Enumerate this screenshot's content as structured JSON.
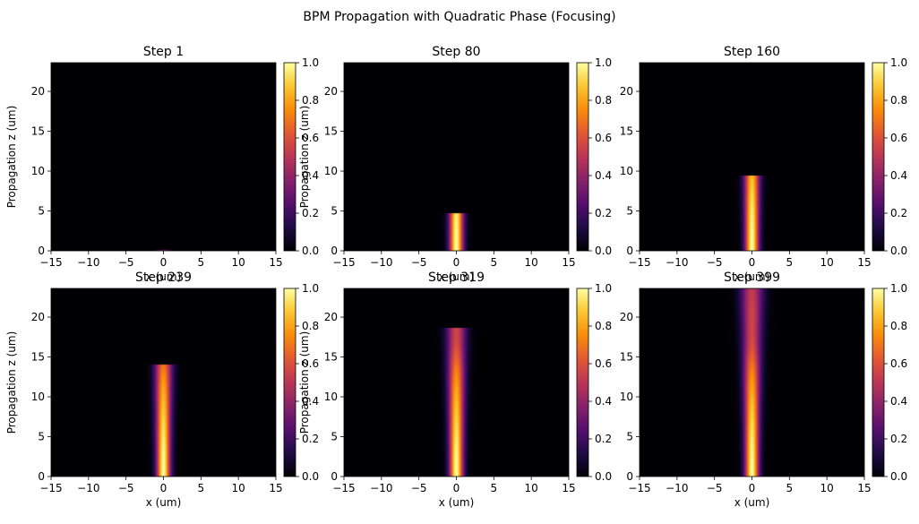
{
  "title": "BPM Propagation with Quadratic Phase (Focusing)",
  "colormap": "inferno",
  "colors": {
    "background": "#ffffff",
    "axis": "#000000",
    "plot_bg": "#000004"
  },
  "chart_data": [
    {
      "type": "heatmap",
      "title": "Step 1",
      "xlabel": "x (um)",
      "ylabel": "Propagation z (um)",
      "xlim": [
        -15,
        15
      ],
      "ylim": [
        0,
        23.6
      ],
      "xticks": [
        "−15",
        "−10",
        "−5",
        "0",
        "5",
        "10",
        "15"
      ],
      "yticks": [
        "0",
        "5",
        "10",
        "15",
        "20"
      ],
      "front_z": 0.06,
      "w0": 1.0,
      "z0": 18.5,
      "zf": 11,
      "focus_z": 17,
      "colorbar": {
        "range": [
          0,
          1
        ],
        "ticks": [
          "0.0",
          "0.2",
          "0.4",
          "0.6",
          "0.8",
          "1.0"
        ]
      }
    },
    {
      "type": "heatmap",
      "title": "Step 80",
      "xlabel": "x (um)",
      "ylabel": "Propagation z (um)",
      "xlim": [
        -15,
        15
      ],
      "ylim": [
        0,
        23.6
      ],
      "xticks": [
        "−15",
        "−10",
        "−5",
        "0",
        "5",
        "10",
        "15"
      ],
      "yticks": [
        "0",
        "5",
        "10",
        "15",
        "20"
      ],
      "front_z": 4.7,
      "w0": 1.0,
      "z0": 18.5,
      "zf": 11,
      "focus_z": 17,
      "colorbar": {
        "range": [
          0,
          1
        ],
        "ticks": [
          "0.0",
          "0.2",
          "0.4",
          "0.6",
          "0.8",
          "1.0"
        ]
      }
    },
    {
      "type": "heatmap",
      "title": "Step 160",
      "xlabel": "x (um)",
      "ylabel": "",
      "xlim": [
        -15,
        15
      ],
      "ylim": [
        0,
        23.6
      ],
      "xticks": [
        "−15",
        "−10",
        "−5",
        "0",
        "5",
        "10",
        "15"
      ],
      "yticks": [
        "0",
        "5",
        "10",
        "15",
        "20"
      ],
      "front_z": 9.4,
      "w0": 1.0,
      "z0": 18.5,
      "zf": 11,
      "focus_z": 17,
      "colorbar": {
        "range": [
          0,
          1
        ],
        "ticks": [
          "0.0",
          "0.2",
          "0.4",
          "0.6",
          "0.8",
          "1.0"
        ]
      }
    },
    {
      "type": "heatmap",
      "title": "Step 239",
      "xlabel": "x (um)",
      "ylabel": "Propagation z (um)",
      "xlim": [
        -15,
        15
      ],
      "ylim": [
        0,
        23.6
      ],
      "xticks": [
        "−15",
        "−10",
        "−5",
        "0",
        "5",
        "10",
        "15"
      ],
      "yticks": [
        "0",
        "5",
        "10",
        "15",
        "20"
      ],
      "front_z": 14.0,
      "w0": 1.0,
      "z0": 18.5,
      "zf": 11,
      "focus_z": 17,
      "colorbar": {
        "range": [
          0,
          1
        ],
        "ticks": [
          "0.0",
          "0.2",
          "0.4",
          "0.6",
          "0.8",
          "1.0"
        ]
      }
    },
    {
      "type": "heatmap",
      "title": "Step 319",
      "xlabel": "x (um)",
      "ylabel": "Propagation z (um)",
      "xlim": [
        -15,
        15
      ],
      "ylim": [
        0,
        23.6
      ],
      "xticks": [
        "−15",
        "−10",
        "−5",
        "0",
        "5",
        "10",
        "15"
      ],
      "yticks": [
        "0",
        "5",
        "10",
        "15",
        "20"
      ],
      "front_z": 18.7,
      "w0": 1.0,
      "z0": 18.5,
      "zf": 11,
      "focus_z": 17,
      "colorbar": {
        "range": [
          0,
          1
        ],
        "ticks": [
          "0.0",
          "0.2",
          "0.4",
          "0.6",
          "0.8",
          "1.0"
        ]
      }
    },
    {
      "type": "heatmap",
      "title": "Step 399",
      "xlabel": "x (um)",
      "ylabel": "",
      "xlim": [
        -15,
        15
      ],
      "ylim": [
        0,
        23.6
      ],
      "xticks": [
        "−15",
        "−10",
        "−5",
        "0",
        "5",
        "10",
        "15"
      ],
      "yticks": [
        "0",
        "5",
        "10",
        "15",
        "20"
      ],
      "front_z": 23.6,
      "w0": 1.0,
      "z0": 18.5,
      "zf": 11,
      "focus_z": 17,
      "colorbar": {
        "range": [
          0,
          1
        ],
        "ticks": [
          "0.0",
          "0.2",
          "0.4",
          "0.6",
          "0.8",
          "1.0"
        ]
      }
    }
  ]
}
